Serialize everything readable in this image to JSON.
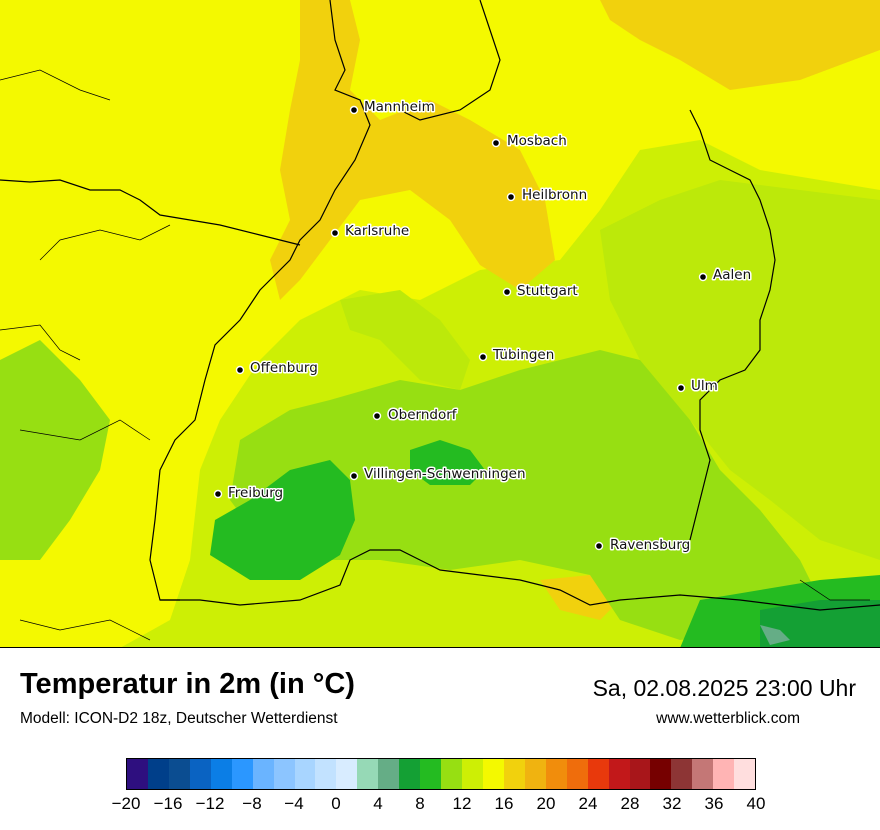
{
  "header": {
    "title": "Temperatur in 2m (in °C)",
    "subtitle": "Modell: ICON-D2 18z, Deutscher Wetterdienst",
    "datetime": "Sa, 02.08.2025 23:00 Uhr",
    "website": "www.wetterblick.com"
  },
  "map": {
    "cities": [
      {
        "name": "Mannheim"
      },
      {
        "name": "Mosbach"
      },
      {
        "name": "Heilbronn"
      },
      {
        "name": "Karlsruhe"
      },
      {
        "name": "Aalen"
      },
      {
        "name": "Stuttgart"
      },
      {
        "name": "Tübingen"
      },
      {
        "name": "Offenburg"
      },
      {
        "name": "Ulm"
      },
      {
        "name": "Oberndorf"
      },
      {
        "name": "Villingen-Schwenningen"
      },
      {
        "name": "Freiburg"
      },
      {
        "name": "Ravensburg"
      }
    ]
  },
  "legend": {
    "colors": [
      "#2e0f7f",
      "#003f8a",
      "#0b4d91",
      "#0a63c2",
      "#0b7ee6",
      "#2b97ff",
      "#6ab4ff",
      "#8cc5ff",
      "#a8d5ff",
      "#c2e2ff",
      "#d8ecff",
      "#96d9b6",
      "#65ad86",
      "#14a034",
      "#24bb21",
      "#97df12",
      "#cdef05",
      "#f4f900",
      "#f1d10d",
      "#f0b310",
      "#f18d0c",
      "#ef6d0c",
      "#e8390c",
      "#c2181a",
      "#a8161a",
      "#760000",
      "#8d3535",
      "#c47776",
      "#ffb4b4",
      "#ffdede"
    ],
    "ticks": [
      "−20",
      "−16",
      "−12",
      "−8",
      "−4",
      "0",
      "4",
      "8",
      "12",
      "16",
      "20",
      "24",
      "28",
      "32",
      "36",
      "40"
    ]
  }
}
